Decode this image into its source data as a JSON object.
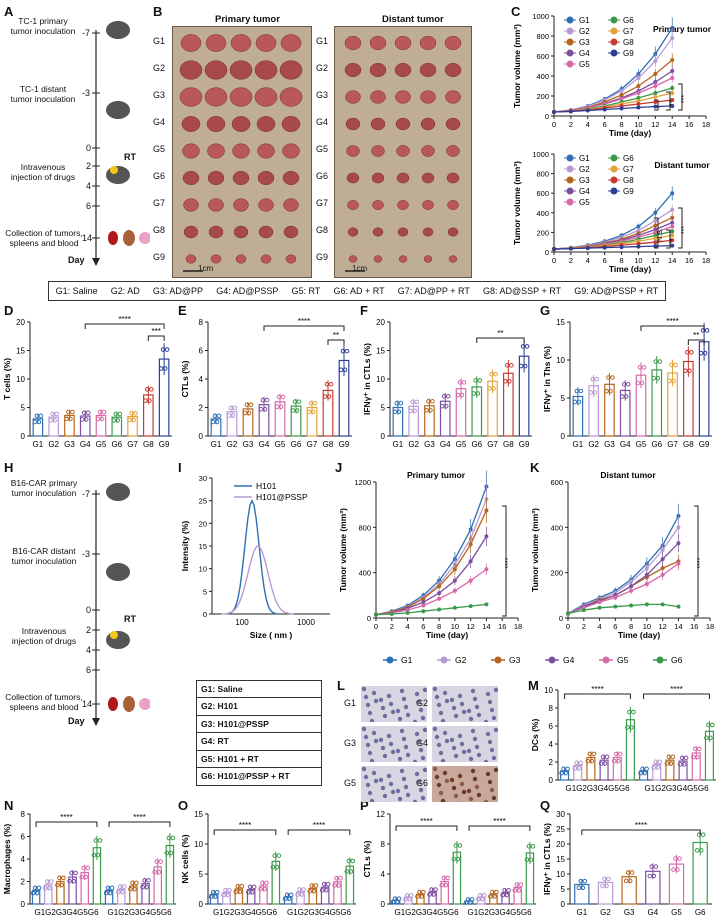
{
  "panels": {
    "A": "A",
    "B": "B",
    "C": "C",
    "D": "D",
    "E": "E",
    "F": "F",
    "G": "G",
    "H": "H",
    "I": "I",
    "J": "J",
    "K": "K",
    "L": "L",
    "M": "M",
    "N": "N",
    "O": "O",
    "P": "P",
    "Q": "Q"
  },
  "timelineA": {
    "steps": [
      "TC-1 primary tumor inoculation",
      "TC-1 distant tumor inoculation",
      "Intravenous injection of drugs",
      "Collection of tumors, spleens and blood"
    ],
    "days": [
      "-7",
      "-3",
      "0",
      "2",
      "4",
      "6",
      "14"
    ],
    "axis": "Day",
    "rt": "RT"
  },
  "timelineH": {
    "steps": [
      "B16-CAR primary tumor inoculation",
      "B16-CAR distant tumor inoculation",
      "Intravenous injection of drugs",
      "Collection of tumors, spleens and blood"
    ],
    "days": [
      "-7",
      "-3",
      "0",
      "2",
      "4",
      "6",
      "14"
    ],
    "axis": "Day",
    "rt": "RT"
  },
  "photos": {
    "primary_title": "Primary tumor",
    "distant_title": "Distant tumor",
    "rows": [
      "G1",
      "G2",
      "G3",
      "G4",
      "G5",
      "G6",
      "G7",
      "G8",
      "G9"
    ],
    "scale": "1cm"
  },
  "group_legend9": [
    "G1: Saline",
    "G2: AD",
    "G3: AD@PP",
    "G4: AD@PSSP",
    "G5: RT",
    "G6: AD + RT",
    "G7: AD@PP + RT",
    "G8: AD@SSP + RT",
    "G9: AD@PSSP + RT"
  ],
  "group_legend6": [
    "G1: Saline",
    "G2: H101",
    "G3: H101@PSSP",
    "G4: RT",
    "G5: H101 + RT",
    "G6: H101@PSSP + RT"
  ],
  "colors9": [
    "#2e6fb5",
    "#b79ad4",
    "#b5651d",
    "#7b4fa0",
    "#d66aa8",
    "#3b9a4a",
    "#e2a43a",
    "#c63a32",
    "#2c3e97"
  ],
  "colors6": [
    "#2e6fb5",
    "#b79ad4",
    "#b5651d",
    "#7b4fa0",
    "#d66aa8",
    "#3b9a4a"
  ],
  "labelsL": [
    "G1",
    "G2",
    "G3",
    "G4",
    "G5",
    "G6"
  ],
  "chart_data": [
    {
      "id": "C1",
      "type": "line",
      "title": "Primary tumor",
      "xlabel": "Time (day)",
      "ylabel": "Tumor volume (mm³)",
      "x": [
        0,
        2,
        4,
        6,
        8,
        10,
        12,
        14
      ],
      "xticks": [
        0,
        2,
        4,
        6,
        8,
        10,
        12,
        14,
        16,
        18
      ],
      "ylim": [
        0,
        1000
      ],
      "yticks": [
        0,
        200,
        400,
        600,
        800,
        1000
      ],
      "sig": [
        "*",
        "**",
        "***"
      ],
      "series": [
        {
          "name": "G1",
          "values": [
            40,
            60,
            100,
            170,
            270,
            420,
            620,
            880
          ]
        },
        {
          "name": "G2",
          "values": [
            40,
            60,
            95,
            160,
            250,
            380,
            550,
            780
          ]
        },
        {
          "name": "G3",
          "values": [
            40,
            55,
            85,
            140,
            210,
            300,
            420,
            560
          ]
        },
        {
          "name": "G4",
          "values": [
            40,
            55,
            80,
            125,
            180,
            250,
            340,
            450
          ]
        },
        {
          "name": "G5",
          "values": [
            40,
            55,
            80,
            120,
            170,
            230,
            300,
            380
          ]
        },
        {
          "name": "G6",
          "values": [
            40,
            50,
            70,
            100,
            140,
            180,
            230,
            280
          ]
        },
        {
          "name": "G7",
          "values": [
            40,
            50,
            65,
            90,
            120,
            150,
            190,
            230
          ]
        },
        {
          "name": "G8",
          "values": [
            40,
            50,
            60,
            80,
            100,
            120,
            140,
            160
          ]
        },
        {
          "name": "G9",
          "values": [
            40,
            45,
            55,
            65,
            75,
            85,
            95,
            100
          ]
        }
      ]
    },
    {
      "id": "C2",
      "type": "line",
      "title": "Distant tumor",
      "xlabel": "Time (day)",
      "ylabel": "Tumor volume (mm³)",
      "x": [
        0,
        2,
        4,
        6,
        8,
        10,
        12,
        14
      ],
      "xticks": [
        0,
        2,
        4,
        6,
        8,
        10,
        12,
        14,
        16,
        18
      ],
      "ylim": [
        0,
        1000
      ],
      "yticks": [
        0,
        200,
        400,
        600,
        800,
        1000
      ],
      "sig": [
        "N.S.",
        "**",
        "***"
      ],
      "series": [
        {
          "name": "G1",
          "values": [
            30,
            45,
            70,
            110,
            170,
            260,
            400,
            600
          ]
        },
        {
          "name": "G2",
          "values": [
            30,
            45,
            65,
            100,
            150,
            220,
            320,
            430
          ]
        },
        {
          "name": "G3",
          "values": [
            30,
            40,
            60,
            90,
            130,
            190,
            270,
            350
          ]
        },
        {
          "name": "G4",
          "values": [
            30,
            40,
            55,
            85,
            120,
            170,
            230,
            300
          ]
        },
        {
          "name": "G5",
          "values": [
            30,
            40,
            55,
            80,
            110,
            150,
            200,
            260
          ]
        },
        {
          "name": "G6",
          "values": [
            30,
            40,
            50,
            70,
            95,
            130,
            170,
            210
          ]
        },
        {
          "name": "G7",
          "values": [
            30,
            40,
            50,
            65,
            85,
            110,
            140,
            170
          ]
        },
        {
          "name": "G8",
          "values": [
            30,
            35,
            45,
            55,
            70,
            85,
            100,
            120
          ]
        },
        {
          "name": "G9",
          "values": [
            30,
            35,
            40,
            45,
            50,
            55,
            60,
            65
          ]
        }
      ]
    },
    {
      "id": "D",
      "type": "bar",
      "ylabel": "T cells (%)",
      "categories": [
        "G1",
        "G2",
        "G3",
        "G4",
        "G5",
        "G6",
        "G7",
        "G8",
        "G9"
      ],
      "values": [
        3,
        3.3,
        3.6,
        3.5,
        3.6,
        3.3,
        3.4,
        7.2,
        13.5
      ],
      "ylim": [
        0,
        20
      ],
      "yticks": [
        0,
        5,
        10,
        15,
        20
      ],
      "sig": [
        "****",
        "***"
      ]
    },
    {
      "id": "E",
      "type": "bar",
      "ylabel": "CTLs (%)",
      "categories": [
        "G1",
        "G2",
        "G3",
        "G4",
        "G5",
        "G6",
        "G7",
        "G8",
        "G9"
      ],
      "values": [
        1.2,
        1.7,
        1.9,
        2.2,
        2.4,
        2.1,
        2.0,
        3.2,
        5.3
      ],
      "ylim": [
        0,
        8
      ],
      "yticks": [
        0,
        2,
        4,
        6,
        8
      ],
      "sig": [
        "****",
        "**"
      ]
    },
    {
      "id": "F",
      "type": "bar",
      "ylabel": "IFNγ⁺ in CTLs (%)",
      "categories": [
        "G1",
        "G2",
        "G3",
        "G4",
        "G5",
        "G6",
        "G7",
        "G8",
        "G9"
      ],
      "values": [
        5.0,
        5.2,
        5.3,
        6.1,
        8.3,
        8.6,
        9.6,
        11.0,
        14.0
      ],
      "ylim": [
        0,
        20
      ],
      "yticks": [
        0,
        5,
        10,
        15,
        20
      ],
      "sig": [
        "**"
      ]
    },
    {
      "id": "G",
      "type": "bar",
      "ylabel": "IFNγ⁺ in Ths (%)",
      "categories": [
        "G1",
        "G2",
        "G3",
        "G4",
        "G5",
        "G6",
        "G7",
        "G8",
        "G9"
      ],
      "values": [
        5.2,
        6.6,
        6.8,
        6.0,
        8.0,
        8.7,
        8.3,
        9.8,
        12.4
      ],
      "ylim": [
        0,
        15
      ],
      "yticks": [
        0,
        5,
        10,
        15
      ],
      "sig": [
        "****",
        "**"
      ]
    },
    {
      "id": "I",
      "type": "line",
      "ylabel": "Intensity (%)",
      "xlabel": "Size ( nm )",
      "xticks": [
        "100",
        "1000"
      ],
      "ylim": [
        0,
        30
      ],
      "yticks": [
        0,
        5,
        10,
        15,
        20,
        25,
        30
      ],
      "series": [
        {
          "name": "H101",
          "color": "#2e6fb5",
          "peak": 25
        },
        {
          "name": "H101@PSSP",
          "color": "#b79ad4",
          "peak": 15
        }
      ]
    },
    {
      "id": "J",
      "type": "line",
      "title": "Primary tumor",
      "xlabel": "Time (day)",
      "ylabel": "Tumor volume (mm³)",
      "x": [
        0,
        2,
        4,
        6,
        8,
        10,
        12,
        14
      ],
      "xticks": [
        0,
        2,
        4,
        6,
        8,
        10,
        12,
        14,
        16,
        18
      ],
      "ylim": [
        0,
        1200
      ],
      "yticks": [
        0,
        400,
        800,
        1200
      ],
      "sig": [
        "****"
      ],
      "series": [
        {
          "name": "G1",
          "values": [
            30,
            60,
            110,
            200,
            330,
            520,
            780,
            1160
          ]
        },
        {
          "name": "G2",
          "values": [
            30,
            55,
            100,
            180,
            300,
            470,
            700,
            1050
          ]
        },
        {
          "name": "G3",
          "values": [
            30,
            55,
            95,
            170,
            280,
            430,
            650,
            950
          ]
        },
        {
          "name": "G4",
          "values": [
            30,
            50,
            85,
            140,
            220,
            330,
            500,
            720
          ]
        },
        {
          "name": "G5",
          "values": [
            30,
            45,
            70,
            110,
            170,
            240,
            330,
            430
          ]
        },
        {
          "name": "G6",
          "values": [
            30,
            35,
            45,
            60,
            75,
            90,
            105,
            120
          ]
        }
      ]
    },
    {
      "id": "K",
      "type": "line",
      "title": "Distant tumor",
      "xlabel": "Time (day)",
      "ylabel": "Tumor volume (mm³)",
      "x": [
        0,
        2,
        4,
        6,
        8,
        10,
        12,
        14
      ],
      "xticks": [
        0,
        2,
        4,
        6,
        8,
        10,
        12,
        14,
        16,
        18
      ],
      "ylim": [
        0,
        600
      ],
      "yticks": [
        0,
        200,
        400,
        600
      ],
      "sig": [
        "****"
      ],
      "series": [
        {
          "name": "G1",
          "values": [
            20,
            60,
            90,
            120,
            170,
            240,
            320,
            450
          ]
        },
        {
          "name": "G2",
          "values": [
            20,
            55,
            85,
            110,
            160,
            220,
            300,
            400
          ]
        },
        {
          "name": "G3",
          "values": [
            20,
            50,
            80,
            100,
            140,
            180,
            220,
            250
          ]
        },
        {
          "name": "G4",
          "values": [
            20,
            50,
            75,
            100,
            140,
            190,
            260,
            330
          ]
        },
        {
          "name": "G5",
          "values": [
            20,
            45,
            70,
            90,
            120,
            150,
            190,
            240
          ]
        },
        {
          "name": "G6",
          "values": [
            20,
            35,
            45,
            50,
            55,
            60,
            60,
            50
          ]
        }
      ]
    },
    {
      "id": "M",
      "type": "bar",
      "ylabel": "DCs (%)",
      "categories": [
        "G1",
        "G2",
        "G3",
        "G4",
        "G5",
        "G6",
        "G1",
        "G2",
        "G3",
        "G4",
        "G5",
        "G6"
      ],
      "xlabels": "G1G2G3G4G5G6",
      "values": [
        1.0,
        1.6,
        2.5,
        2.2,
        2.5,
        6.7,
        1.0,
        1.7,
        2.2,
        2.1,
        3.0,
        5.4
      ],
      "ylim": [
        0,
        10
      ],
      "yticks": [
        0,
        2,
        4,
        6,
        8,
        10
      ],
      "sig": [
        "****",
        "****"
      ]
    },
    {
      "id": "N",
      "type": "bar",
      "ylabel": "Macrophages (%)",
      "categories": [
        "G1",
        "G2",
        "G3",
        "G4",
        "G5",
        "G6",
        "G1",
        "G2",
        "G3",
        "G4",
        "G5",
        "G6"
      ],
      "xlabels": "G1G2G3G4G5G6",
      "values": [
        1.2,
        1.7,
        2.0,
        2.4,
        2.8,
        5.0,
        1.2,
        1.3,
        1.6,
        1.8,
        3.3,
        5.2
      ],
      "ylim": [
        0,
        8
      ],
      "yticks": [
        0,
        2,
        4,
        6,
        8
      ],
      "sig": [
        "****",
        "****"
      ]
    },
    {
      "id": "O",
      "type": "bar",
      "ylabel": "NK cells (%)",
      "categories": [
        "G1",
        "G2",
        "G3",
        "G4",
        "G5",
        "G6",
        "G1",
        "G2",
        "G3",
        "G4",
        "G5",
        "G6"
      ],
      "xlabels": "G1G2G3G4G5G6",
      "values": [
        1.6,
        1.9,
        2.5,
        2.4,
        3.0,
        7.1,
        1.2,
        2.0,
        2.6,
        2.8,
        3.7,
        6.3
      ],
      "ylim": [
        0,
        15
      ],
      "yticks": [
        0,
        5,
        10,
        15
      ],
      "sig": [
        "****",
        "****"
      ]
    },
    {
      "id": "P",
      "type": "bar",
      "ylabel": "CTLs (%)",
      "categories": [
        "G1",
        "G2",
        "G3",
        "G4",
        "G5",
        "G6",
        "G1",
        "G2",
        "G3",
        "G4",
        "G5",
        "G6"
      ],
      "xlabels": "G1G2G3G4G5G6",
      "values": [
        0.5,
        0.9,
        1.3,
        1.6,
        3.0,
        6.9,
        0.4,
        0.9,
        1.3,
        1.5,
        2.2,
        6.8
      ],
      "ylim": [
        0,
        12
      ],
      "yticks": [
        0,
        4,
        8,
        12
      ],
      "sig": [
        "****",
        "****"
      ]
    },
    {
      "id": "Q",
      "type": "bar",
      "ylabel": "IFNγ⁺ in CTLs (%)",
      "categories": [
        "G1",
        "G2",
        "G3",
        "G4",
        "G5",
        "G6"
      ],
      "values": [
        6.5,
        7.2,
        9.1,
        10.9,
        13.3,
        20.5
      ],
      "ylim": [
        0,
        30
      ],
      "yticks": [
        0,
        5,
        10,
        15,
        20,
        25,
        30
      ],
      "sig": [
        "****"
      ]
    }
  ]
}
